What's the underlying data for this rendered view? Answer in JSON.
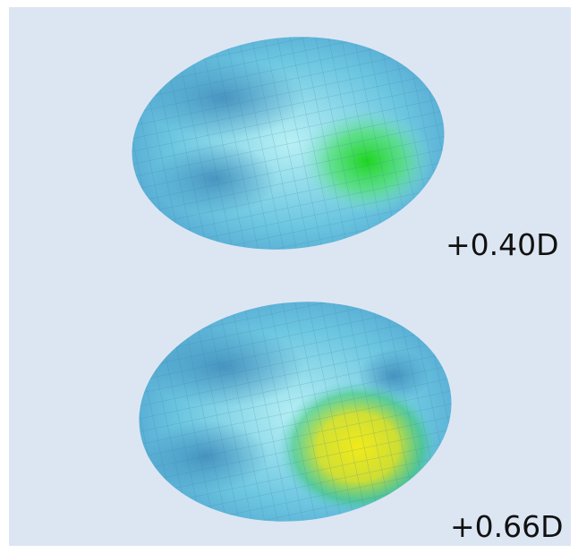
{
  "panels": [
    {
      "label": "+0.40D"
    },
    {
      "label": "+0.66D"
    }
  ]
}
